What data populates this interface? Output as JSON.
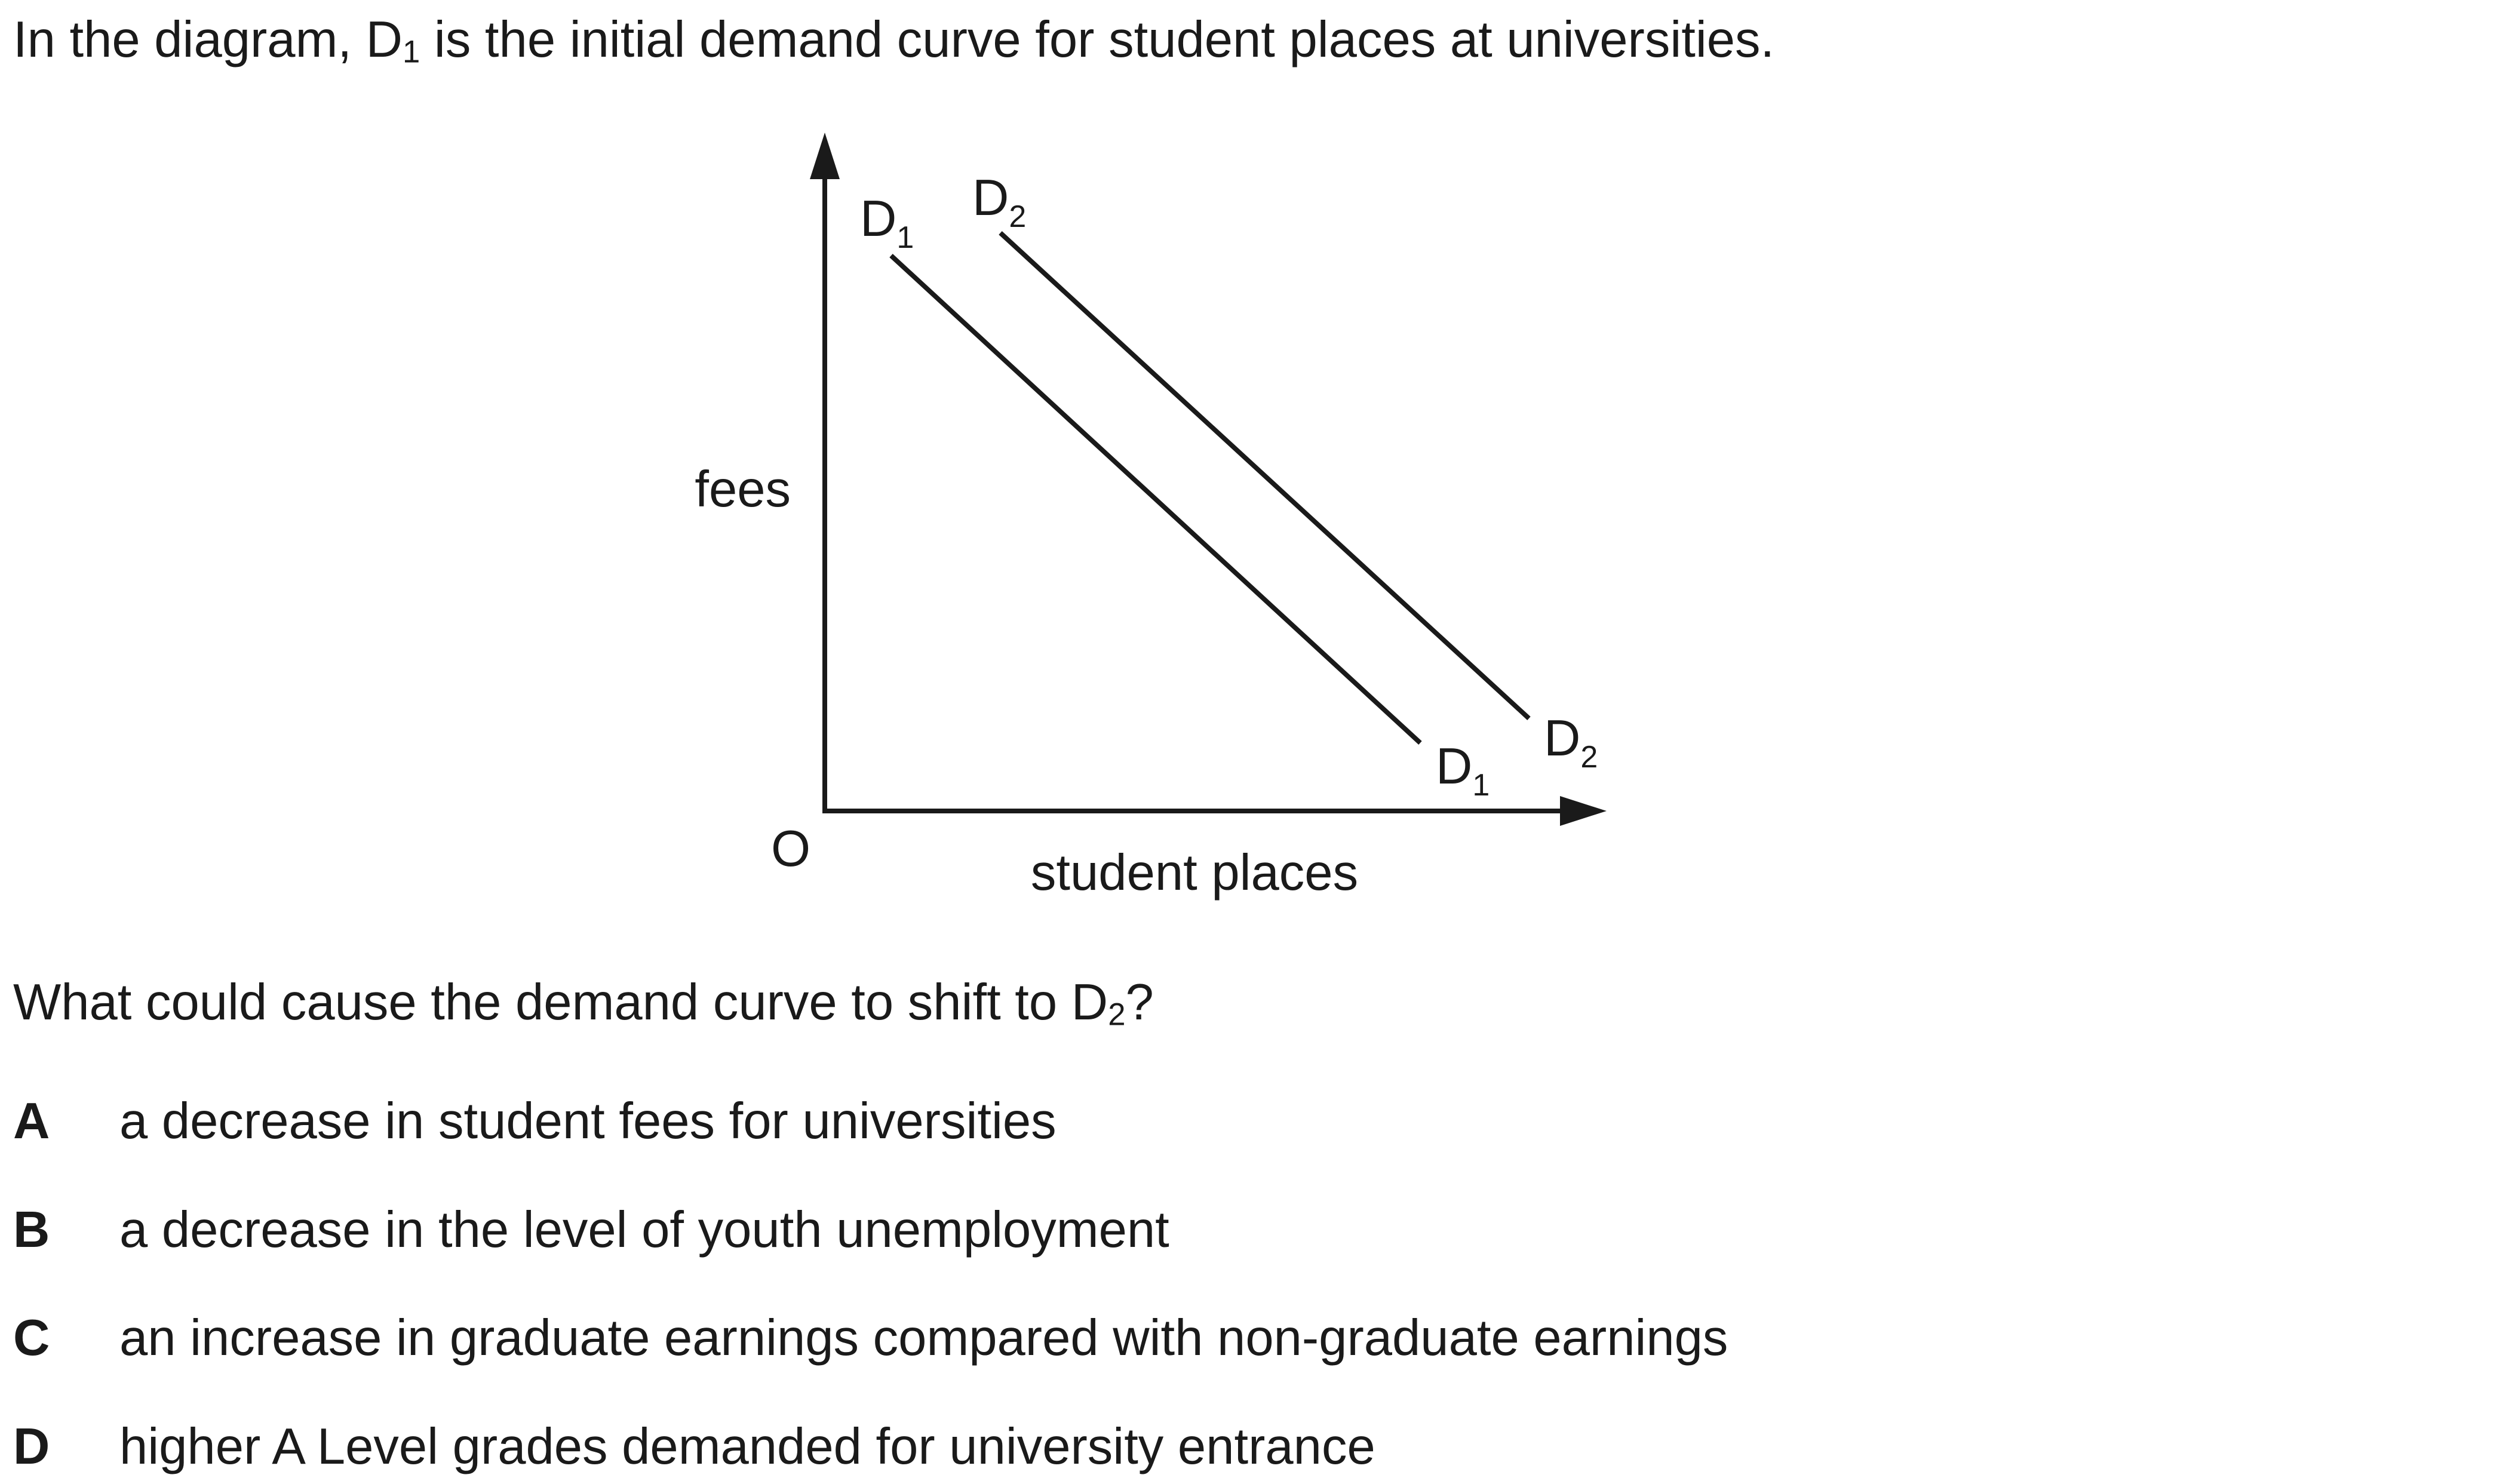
{
  "intro": {
    "before": "In the diagram, D",
    "sub": "1",
    "after": " is the initial demand curve for student places at universities."
  },
  "diagram": {
    "y_axis_label": "fees",
    "x_axis_label": "student places",
    "origin_label": "O",
    "curves": [
      {
        "name": "D1",
        "letter": "D",
        "sub": "1"
      },
      {
        "name": "D2",
        "letter": "D",
        "sub": "2"
      }
    ]
  },
  "question": {
    "before": "What could cause the demand curve to shift to D",
    "sub": "2",
    "after": "?"
  },
  "options": [
    {
      "letter": "A",
      "text": "a decrease in student fees for universities"
    },
    {
      "letter": "B",
      "text": "a decrease in the level of youth unemployment"
    },
    {
      "letter": "C",
      "text": "an increase in graduate earnings compared with non-graduate earnings"
    },
    {
      "letter": "D",
      "text": "higher A Level grades demanded for university entrance"
    }
  ]
}
